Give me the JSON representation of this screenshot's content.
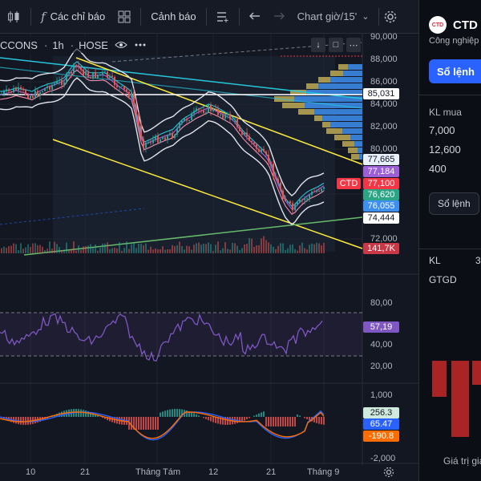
{
  "toolbar": {
    "indicators_label": "Các chỉ báo",
    "alerts_label": "Cảnh báo",
    "chart_label": "Chart giờ/15'",
    "fx_glyph": "f",
    "chevron": "⌄"
  },
  "legend": {
    "symbol_label": "CCONS",
    "interval": "1h",
    "exchange": "HOSE",
    "sep": "·"
  },
  "price_axis": {
    "ticks": [
      "90,000",
      "88,000",
      "86,000",
      "84,000",
      "82,000",
      "80,000",
      "72,000"
    ],
    "tags": [
      {
        "value": "85,031",
        "bg": "#ffffff",
        "fg": "#131722"
      },
      {
        "value": "77,665",
        "bg": "#e8f1fb",
        "fg": "#131722"
      },
      {
        "value": "77,184",
        "bg": "#9c5fd7",
        "fg": "#ffffff"
      },
      {
        "value": "77,100",
        "bg": "#f23645",
        "fg": "#ffffff"
      },
      {
        "value": "76,620",
        "bg": "#2ba586",
        "fg": "#ffffff"
      },
      {
        "value": "76,055",
        "bg": "#3d8ff0",
        "fg": "#ffffff"
      },
      {
        "value": "74,444",
        "bg": "#ffffff",
        "fg": "#131722"
      },
      {
        "value": "141,7K",
        "bg": "#c93846",
        "fg": "#ffffff"
      }
    ],
    "symbol_tag": "CTD"
  },
  "rsi": {
    "ticks": [
      "80,00",
      "40,00",
      "20,00"
    ],
    "value": "57,19"
  },
  "macd": {
    "ticks": [
      "1,000",
      "-2,000"
    ],
    "values": [
      {
        "value": "256.3",
        "bg": "#cfeadd",
        "fg": "#131722"
      },
      {
        "value": "65.47",
        "bg": "#2962ff",
        "fg": "#ffffff"
      },
      {
        "value": "-190.8",
        "bg": "#ff6d00",
        "fg": "#ffffff"
      }
    ]
  },
  "time_axis": {
    "labels": [
      "10",
      "21",
      "Tháng Tám",
      "12",
      "21",
      "Tháng 9"
    ]
  },
  "right_panel": {
    "ticker": "CTD",
    "ticker_suffix": "(",
    "industry": "Công nghiệp",
    "order_button": "Sổ lệnh",
    "buy_vol_label": "KL mua",
    "buy_vols": [
      "7,000",
      "12,600",
      "400"
    ],
    "orderbook_chip": "Sổ lệnh",
    "kl_label": "KL",
    "kl_value": "3",
    "gtgd_label": "GTGD",
    "footer_label": "Giá trị gia"
  },
  "colors": {
    "up": "#26a69a",
    "down": "#ef5350",
    "accent": "#2962ff",
    "rsi_line": "#7e57c2",
    "trend_yellow": "#ffeb3b",
    "trend_cyan": "#26c6da"
  }
}
